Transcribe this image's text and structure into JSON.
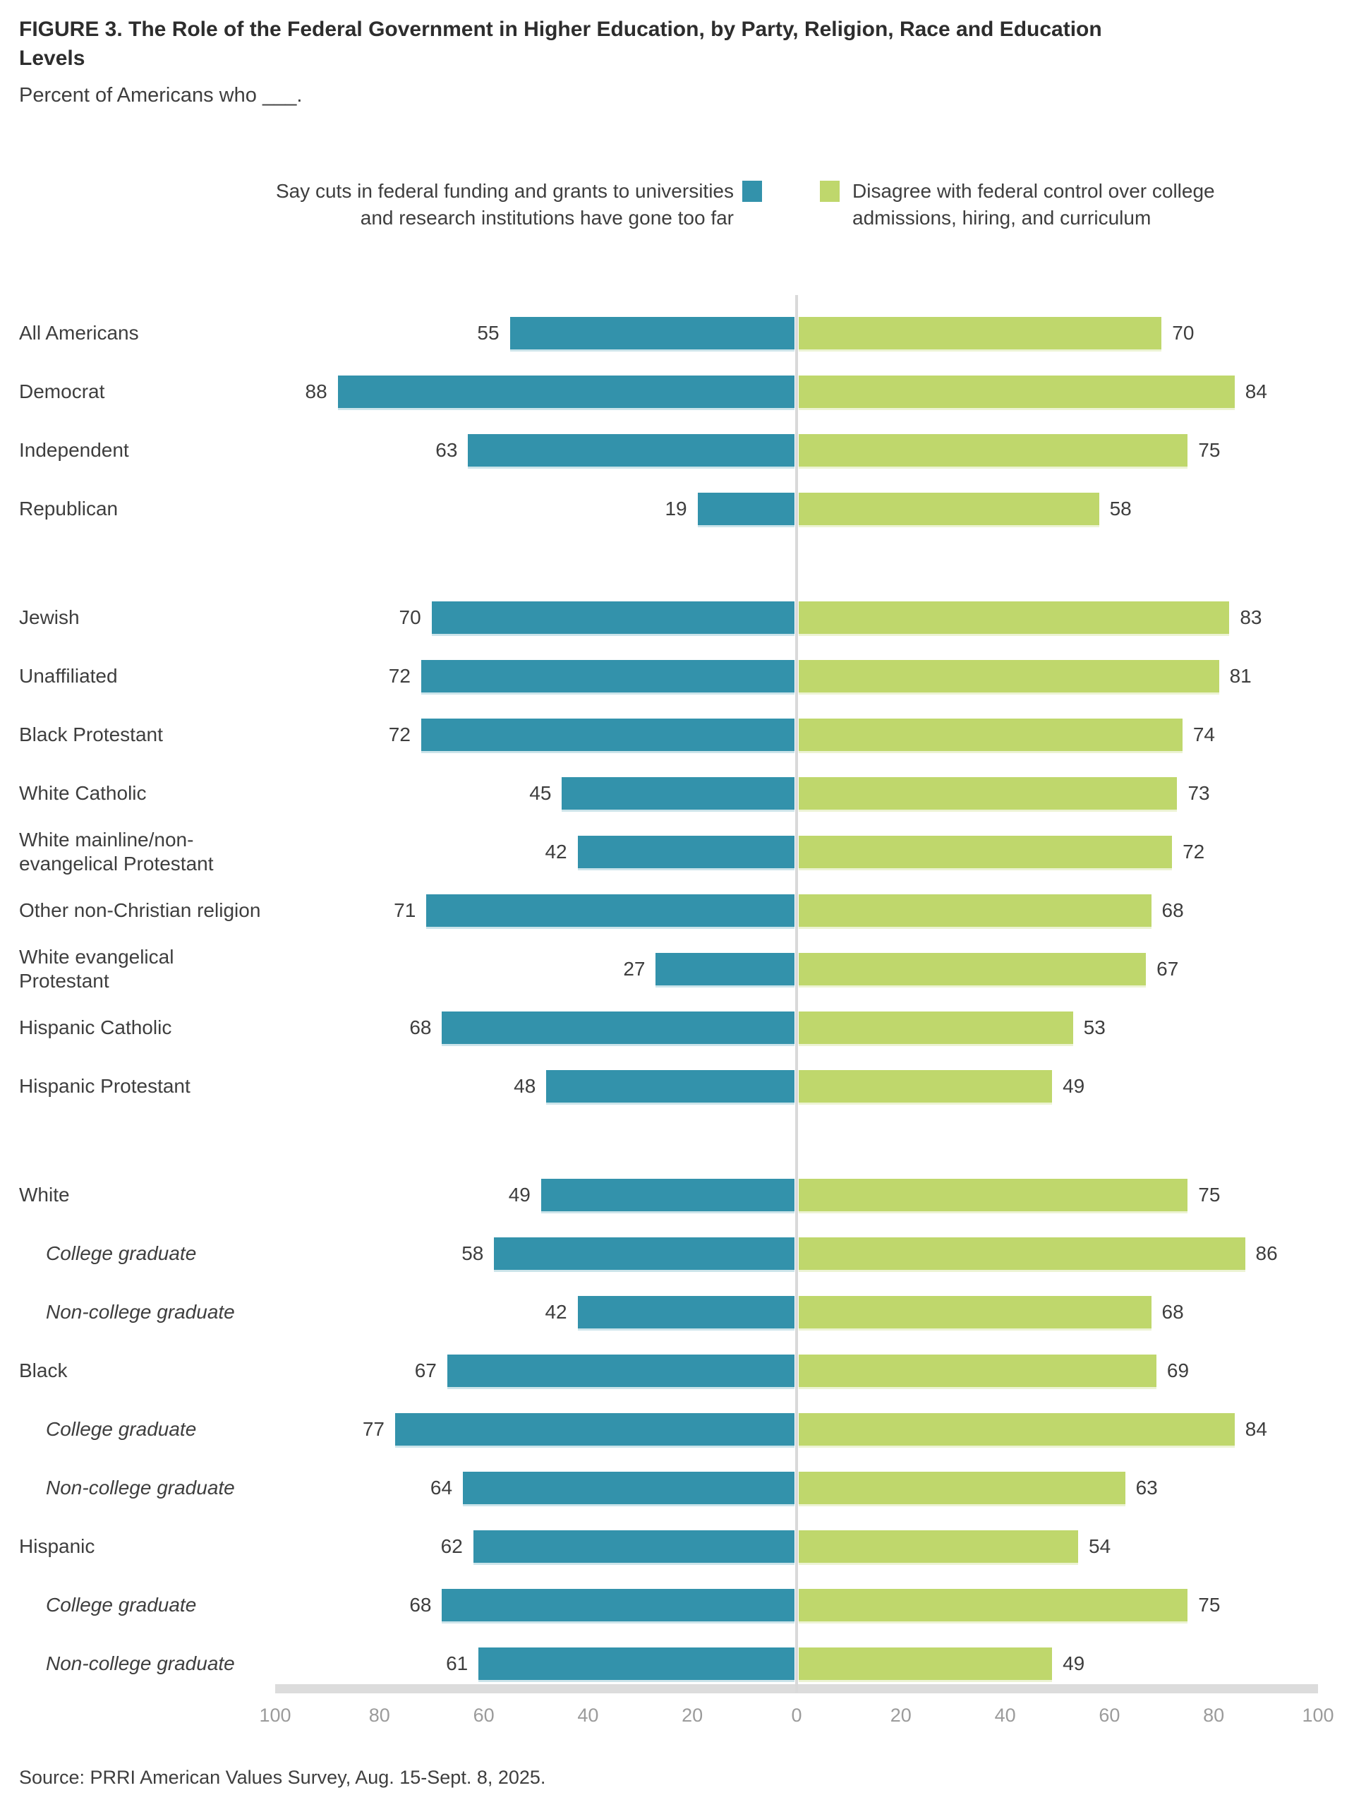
{
  "title": "FIGURE 3. The Role of the Federal Government in Higher Education, by Party, Religion, Race and Education Levels",
  "subtitle": "Percent of Americans who ___.",
  "legend": {
    "series1": {
      "label": "Say cuts in federal funding and grants to universities and research institutions have gone too far",
      "color": "#3392AB"
    },
    "series2": {
      "label": "Disagree with federal control over college admissions, hiring, and curriculum",
      "color": "#BFD76C"
    }
  },
  "axis": {
    "ticks": [
      100,
      80,
      60,
      40,
      20,
      0,
      20,
      40,
      60,
      80,
      100
    ],
    "max_each_side": 100,
    "center_line_color": "#d9d9d9",
    "baseline_color": "#dcdcdc",
    "tick_color": "#9b9b9b"
  },
  "source": "Source: PRRI American Values Survey, Aug. 15-Sept. 8, 2025.",
  "chart_data": {
    "type": "bar",
    "orientation": "horizontal-diverging",
    "title": "The Role of the Federal Government in Higher Education, by Party, Religion, Race and Education Levels",
    "xlim": [
      -100,
      100
    ],
    "legend_position": "top",
    "grid": false,
    "series": [
      {
        "name": "Say cuts in federal funding and grants to universities and research institutions have gone too far",
        "side": "left",
        "color": "#3392AB"
      },
      {
        "name": "Disagree with federal control over college admissions, hiring, and curriculum",
        "side": "right",
        "color": "#BFD76C"
      }
    ],
    "groups": [
      {
        "rows": [
          {
            "label": "All Americans",
            "indent": false,
            "left": 55,
            "right": 70
          },
          {
            "label": "Democrat",
            "indent": false,
            "left": 88,
            "right": 84
          },
          {
            "label": "Independent",
            "indent": false,
            "left": 63,
            "right": 75
          },
          {
            "label": "Republican",
            "indent": false,
            "left": 19,
            "right": 58
          }
        ]
      },
      {
        "rows": [
          {
            "label": "Jewish",
            "indent": false,
            "left": 70,
            "right": 83
          },
          {
            "label": "Unaffiliated",
            "indent": false,
            "left": 72,
            "right": 81
          },
          {
            "label": "Black Protestant",
            "indent": false,
            "left": 72,
            "right": 74
          },
          {
            "label": "White Catholic",
            "indent": false,
            "left": 45,
            "right": 73
          },
          {
            "label": "White mainline/non-evangelical Protestant",
            "indent": false,
            "left": 42,
            "right": 72
          },
          {
            "label": "Other non-Christian religion",
            "indent": false,
            "left": 71,
            "right": 68
          },
          {
            "label": "White evangelical Protestant",
            "indent": false,
            "left": 27,
            "right": 67
          },
          {
            "label": "Hispanic Catholic",
            "indent": false,
            "left": 68,
            "right": 53
          },
          {
            "label": "Hispanic Protestant",
            "indent": false,
            "left": 48,
            "right": 49
          }
        ]
      },
      {
        "rows": [
          {
            "label": "White",
            "indent": false,
            "left": 49,
            "right": 75
          },
          {
            "label": "College graduate",
            "indent": true,
            "left": 58,
            "right": 86
          },
          {
            "label": "Non-college graduate",
            "indent": true,
            "left": 42,
            "right": 68
          },
          {
            "label": "Black",
            "indent": false,
            "left": 67,
            "right": 69
          },
          {
            "label": "College graduate",
            "indent": true,
            "left": 77,
            "right": 84
          },
          {
            "label": "Non-college graduate",
            "indent": true,
            "left": 64,
            "right": 63
          },
          {
            "label": "Hispanic",
            "indent": false,
            "left": 62,
            "right": 54
          },
          {
            "label": "College graduate",
            "indent": true,
            "left": 68,
            "right": 75
          },
          {
            "label": "Non-college graduate",
            "indent": true,
            "left": 61,
            "right": 49
          }
        ]
      }
    ]
  }
}
